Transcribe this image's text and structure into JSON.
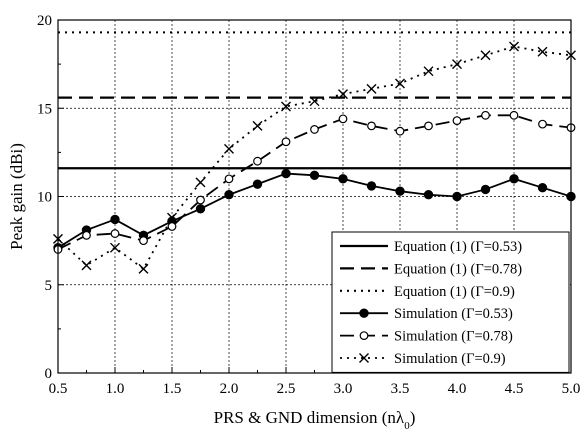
{
  "chart_data": {
    "type": "line",
    "title": "",
    "xlabel": "PRS & GND dimension (nλ",
    "xlabel_sub": "0",
    "xlabel_close": ")",
    "ylabel": "Peak gain (dBi)",
    "xlim": [
      0.5,
      5.0
    ],
    "ylim": [
      0,
      20
    ],
    "xticks": [
      0.5,
      1.0,
      1.5,
      2.0,
      2.5,
      3.0,
      3.5,
      4.0,
      4.5,
      5.0
    ],
    "xtick_labels": [
      "0.5",
      "1.0",
      "1.5",
      "2.0",
      "2.5",
      "3.0",
      "3.5",
      "4.0",
      "4.5",
      "5.0"
    ],
    "yticks": [
      0,
      5,
      10,
      15,
      20
    ],
    "ytick_labels": [
      "0",
      "5",
      "10",
      "15",
      "20"
    ],
    "grid": true,
    "legend_position": "bottom-right",
    "x": [
      0.5,
      0.75,
      1.0,
      1.25,
      1.5,
      1.75,
      2.0,
      2.25,
      2.5,
      2.75,
      3.0,
      3.25,
      3.5,
      3.75,
      4.0,
      4.25,
      4.5,
      4.75,
      5.0
    ],
    "series": [
      {
        "name": "Equation (1) (Γ=0.53)",
        "kind": "constant",
        "style": "solid",
        "value": 11.6
      },
      {
        "name": "Equation (1) (Γ=0.78)",
        "kind": "constant",
        "style": "dashed",
        "value": 15.6
      },
      {
        "name": "Equation (1) (Γ=0.9)",
        "kind": "constant",
        "style": "dotted",
        "value": 19.3
      },
      {
        "name": "Simulation (Γ=0.53)",
        "kind": "data",
        "style": "solid",
        "marker": "filled-circle",
        "values": [
          7.1,
          8.1,
          8.7,
          7.8,
          8.6,
          9.3,
          10.1,
          10.7,
          11.3,
          11.2,
          11.0,
          10.6,
          10.3,
          10.1,
          10.0,
          10.4,
          11.0,
          10.5,
          10.0
        ]
      },
      {
        "name": "Simulation (Γ=0.78)",
        "kind": "data",
        "style": "dashed",
        "marker": "open-circle",
        "values": [
          7.0,
          7.8,
          7.9,
          7.5,
          8.3,
          9.8,
          11.0,
          12.0,
          13.1,
          13.8,
          14.4,
          14.0,
          13.7,
          14.0,
          14.3,
          14.6,
          14.6,
          14.1,
          13.9
        ]
      },
      {
        "name": "Simulation (Γ=0.9)",
        "kind": "data",
        "style": "dotted",
        "marker": "x",
        "values": [
          7.6,
          6.1,
          7.1,
          5.9,
          8.8,
          10.8,
          12.7,
          14.0,
          15.1,
          15.4,
          15.8,
          16.1,
          16.4,
          17.1,
          17.5,
          18.0,
          18.5,
          18.2,
          18.0
        ]
      }
    ]
  }
}
